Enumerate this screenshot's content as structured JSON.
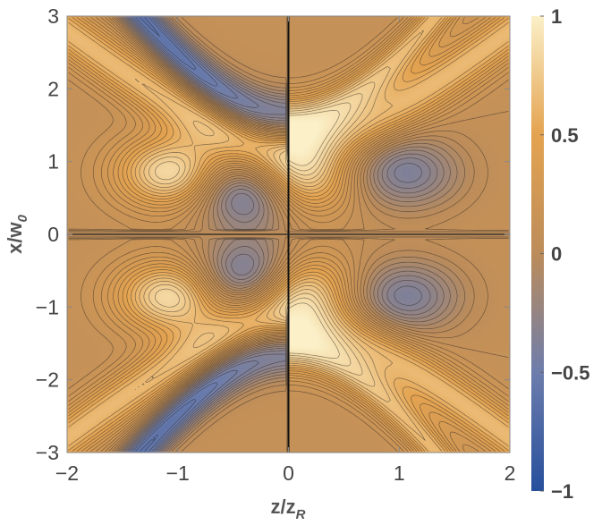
{
  "chart_data": {
    "type": "heatmap",
    "subtype": "contour",
    "title": "",
    "xlabel": {
      "main": "z/z",
      "sub": "R"
    },
    "ylabel": {
      "main": "x/w",
      "sub": "0"
    },
    "xlim": [
      -2,
      2
    ],
    "ylim": [
      -3,
      3
    ],
    "x_ticks": [
      -2,
      -1,
      0,
      1,
      2
    ],
    "x_tick_labels": [
      "−2",
      "−1",
      "0",
      "1",
      "2"
    ],
    "y_ticks": [
      -3,
      -2,
      -1,
      0,
      1,
      2,
      3
    ],
    "y_tick_labels": [
      "−3",
      "−2",
      "−1",
      "0",
      "1",
      "2",
      "3"
    ],
    "colorbar": {
      "range": [
        -1,
        1
      ],
      "ticks": [
        1,
        0.5,
        0,
        -0.5,
        -1
      ],
      "tick_labels": [
        "1",
        "0.5",
        "0",
        "−0.5",
        "−1"
      ],
      "colors": [
        "#264f9c",
        "#6d7dac",
        "#bc8c5a",
        "#e4a350",
        "#fbf0c8"
      ]
    },
    "features": [
      {
        "kind": "maximum",
        "x": 0.02,
        "y": 0.72,
        "value": 1.0
      },
      {
        "kind": "maximum",
        "x": 0.02,
        "y": -0.72,
        "value": 1.0
      },
      {
        "kind": "maximum",
        "x": -1.05,
        "y": 0.85,
        "value": 0.8
      },
      {
        "kind": "maximum",
        "x": -1.05,
        "y": -0.85,
        "value": 0.8
      },
      {
        "kind": "minimum",
        "x": -0.3,
        "y": 0.6,
        "value": -1.0
      },
      {
        "kind": "minimum",
        "x": -0.3,
        "y": -0.6,
        "value": -1.0
      },
      {
        "kind": "minimum",
        "x": 1.05,
        "y": 0.85,
        "value": -0.5
      },
      {
        "kind": "minimum",
        "x": 1.05,
        "y": -0.85,
        "value": -0.5
      }
    ]
  }
}
